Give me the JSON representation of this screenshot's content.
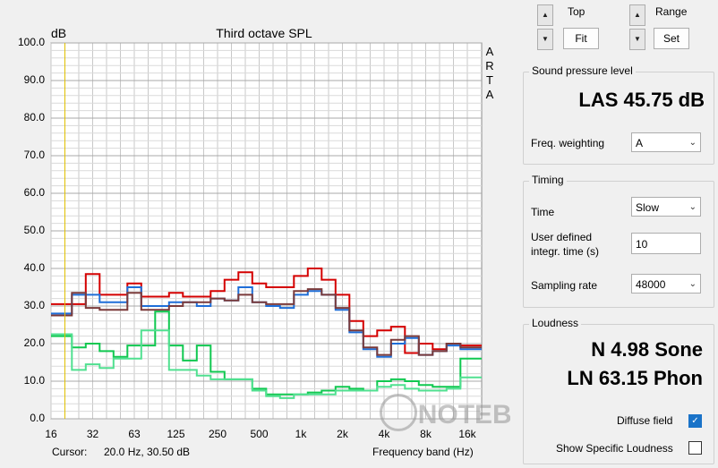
{
  "plot": {
    "title": "Third octave SPL",
    "y_unit": "dB",
    "arta": [
      "A",
      "R",
      "T",
      "A"
    ],
    "yticks": [
      "100.0",
      "90.0",
      "80.0",
      "70.0",
      "60.0",
      "50.0",
      "40.0",
      "30.0",
      "20.0",
      "10.0",
      "0.0"
    ],
    "xticks": [
      "16",
      "32",
      "63",
      "125",
      "250",
      "500",
      "1k",
      "2k",
      "4k",
      "8k",
      "16k"
    ],
    "cursor_label": "Cursor:",
    "cursor_value": "20.0 Hz, 30.50 dB",
    "x_axis_label": "Frequency band (Hz)",
    "watermark": "NOTEBOOKCHECK"
  },
  "chart_data": {
    "type": "line",
    "title": "Third octave SPL",
    "ylabel": "dB",
    "xlabel": "Frequency band (Hz)",
    "ylim": [
      0,
      100
    ],
    "x": [
      "16",
      "20",
      "25",
      "31.5",
      "40",
      "50",
      "63",
      "80",
      "100",
      "125",
      "160",
      "200",
      "250",
      "315",
      "400",
      "500",
      "630",
      "800",
      "1k",
      "1.25k",
      "1.6k",
      "2k",
      "2.5k",
      "3.15k",
      "4k",
      "5k",
      "6.3k",
      "8k",
      "10k",
      "12.5k",
      "16k",
      "20k"
    ],
    "series": [
      {
        "color": "#d40000",
        "values": [
          30.5,
          30.5,
          30.5,
          38.5,
          33,
          33,
          36,
          32.5,
          32.5,
          33.5,
          32.5,
          32.5,
          34,
          37,
          39,
          36,
          35,
          35,
          38,
          40,
          37,
          33,
          26,
          22,
          23.5,
          24.5,
          17.5,
          20,
          18.5,
          20,
          19.5,
          19.5
        ]
      },
      {
        "color": "#1e6ed8",
        "values": [
          28,
          28,
          33,
          33,
          31,
          31,
          35,
          30,
          30,
          31,
          31,
          30,
          32,
          31.5,
          35,
          31,
          30,
          29.5,
          33,
          34,
          33,
          29,
          23,
          18.5,
          16.5,
          20,
          21.5,
          17,
          18,
          19.5,
          18.5,
          18.5
        ]
      },
      {
        "color": "#7a3a3a",
        "values": [
          27.5,
          27.5,
          33.5,
          29.5,
          29,
          29,
          33.5,
          29,
          29,
          30,
          31,
          31,
          32,
          31.5,
          33,
          31,
          30.5,
          30.5,
          34,
          34.5,
          33,
          29.5,
          23.5,
          19,
          17,
          21,
          22,
          17,
          18,
          20,
          19,
          19
        ]
      },
      {
        "color": "#10c850",
        "values": [
          22,
          22,
          19,
          20,
          18,
          16.5,
          19.5,
          19.5,
          28.5,
          19.5,
          15.5,
          19.5,
          12.5,
          10.5,
          10.5,
          8,
          6.5,
          6.5,
          6.5,
          7,
          7.5,
          8.5,
          8,
          7.5,
          10,
          10.5,
          10,
          9,
          8.5,
          8.5,
          16,
          16
        ]
      },
      {
        "color": "#50e090",
        "values": [
          22.5,
          22.5,
          13,
          14.5,
          13.5,
          16,
          16,
          23.5,
          23.5,
          13,
          13,
          11.5,
          10.5,
          10.5,
          10.5,
          7.5,
          6,
          5.5,
          6.5,
          6.5,
          6.5,
          7.5,
          7.5,
          7.5,
          8.5,
          9,
          8,
          7.5,
          7.5,
          8,
          11,
          11
        ]
      }
    ],
    "grid": true,
    "cursor_x": "20"
  },
  "top_controls": {
    "top_label": "Top",
    "fit_label": "Fit",
    "range_label": "Range",
    "set_label": "Set",
    "up_icon": "▲",
    "down_icon": "▼"
  },
  "spl": {
    "group_title": "Sound pressure level",
    "value": "LAS 45.75 dB",
    "freq_weighting_label": "Freq. weighting",
    "freq_weighting_value": "A"
  },
  "timing": {
    "group_title": "Timing",
    "time_label": "Time",
    "time_value": "Slow",
    "integ_label_1": "User defined",
    "integ_label_2": "integr. time (s)",
    "integ_value": "10",
    "sampling_label": "Sampling rate",
    "sampling_value": "48000"
  },
  "loudness": {
    "group_title": "Loudness",
    "sone": "N 4.98 Sone",
    "phon": "LN 63.15 Phon",
    "diffuse_label": "Diffuse field",
    "specific_label": "Show Specific Loudness"
  },
  "colors": {
    "plot_bg": "#ffffff",
    "grid": "#c8c8c8",
    "cursor_line": "#e0c000"
  }
}
